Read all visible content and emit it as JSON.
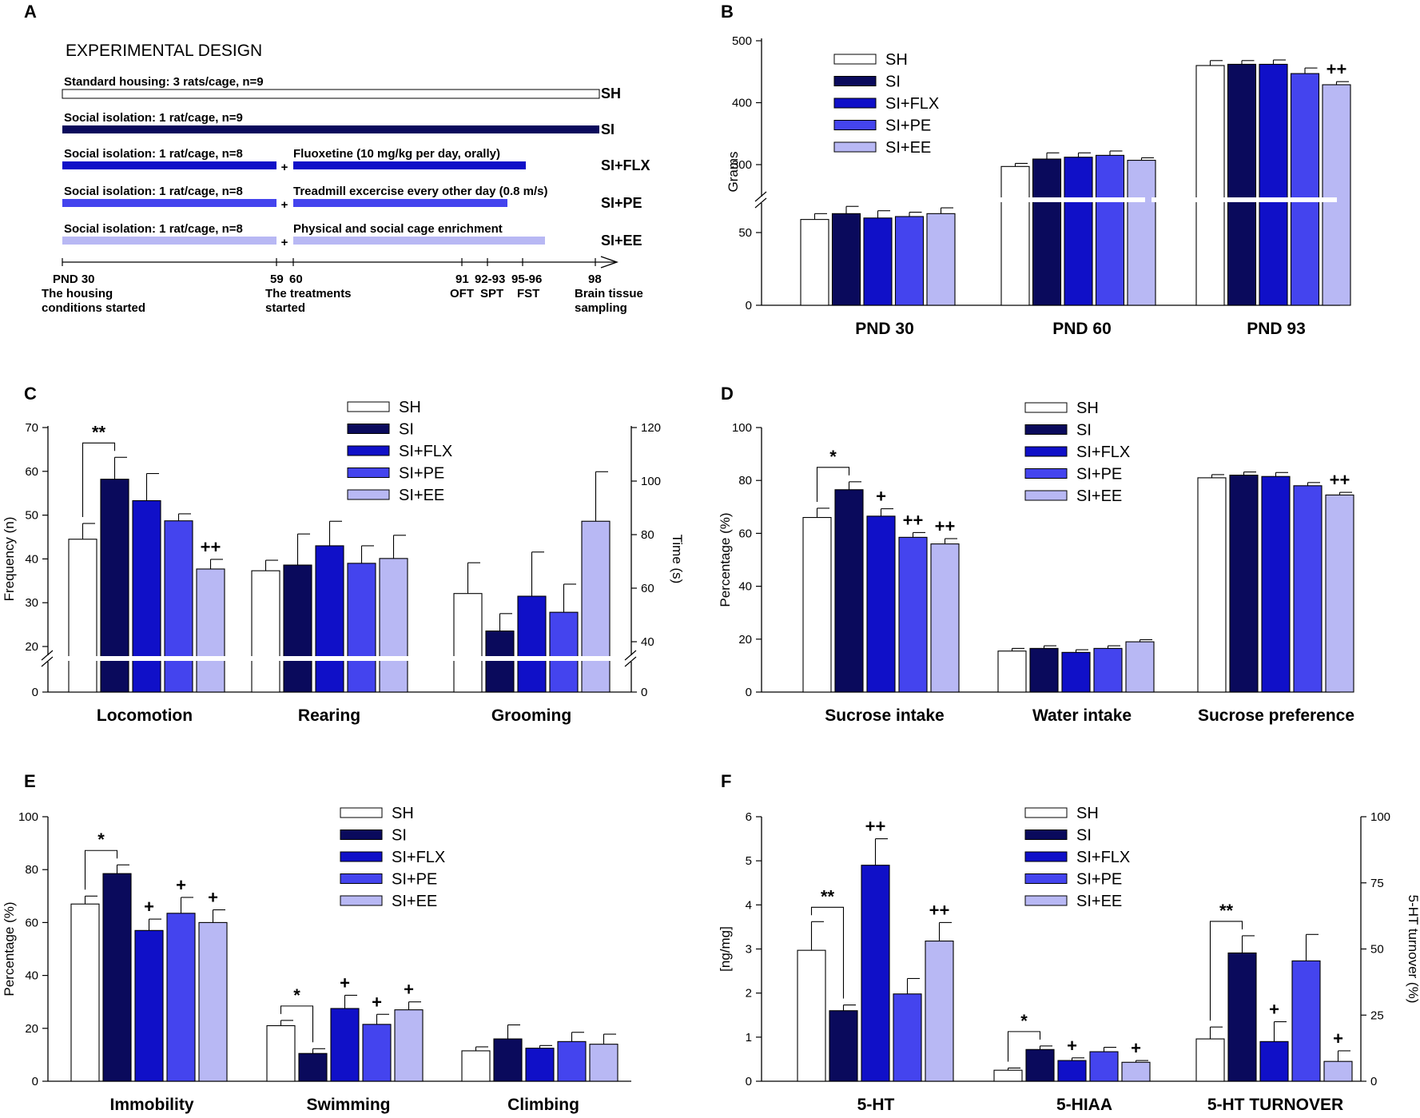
{
  "colors": {
    "SH": "#ffffff",
    "SI": "#0a0a5c",
    "SI+FLX": "#1010c8",
    "SI+PE": "#4444ee",
    "SI+EE": "#b8b8f4"
  },
  "groups": [
    "SH",
    "SI",
    "SI+FLX",
    "SI+PE",
    "SI+EE"
  ],
  "panel_letters": [
    "A",
    "B",
    "C",
    "D",
    "E",
    "F"
  ],
  "design": {
    "title": "EXPERIMENTAL DESIGN",
    "rows": [
      {
        "id": "SH",
        "label": "Standard housing: 3 rats/cage, n=9",
        "tag": "SH",
        "color_key": "SH",
        "treatment": null
      },
      {
        "id": "SI",
        "label": "Social isolation: 1 rat/cage, n=9",
        "tag": "SI",
        "color_key": "SI",
        "treatment": null
      },
      {
        "id": "SI+FLX",
        "label": "Social isolation: 1 rat/cage, n=8",
        "tag": "SI+FLX",
        "color_key": "SI+FLX",
        "treatment": "Fluoxetine (10 mg/kg per day, orally)"
      },
      {
        "id": "SI+PE",
        "label": "Social isolation: 1 rat/cage, n=8",
        "tag": "SI+PE",
        "color_key": "SI+PE",
        "treatment": "Treadmill excercise every other day (0.8 m/s)"
      },
      {
        "id": "SI+EE",
        "label": "Social isolation: 1 rat/cage, n=8",
        "tag": "SI+EE",
        "color_key": "SI+EE",
        "treatment": "Physical and social cage enrichment"
      }
    ],
    "plus": "+",
    "timeline": [
      {
        "day": "PND 30",
        "line2": "The housing",
        "line3": "conditions started"
      },
      {
        "day": "59",
        "line2": "The treatments",
        "line3": "started"
      },
      {
        "day": "60",
        "line2": "",
        "line3": ""
      },
      {
        "day": "91",
        "line2": "OFT",
        "line3": ""
      },
      {
        "day": "92-93",
        "line2": "SPT",
        "line3": ""
      },
      {
        "day": "95-96",
        "line2": "FST",
        "line3": ""
      },
      {
        "day": "98",
        "line2": "Brain tissue",
        "line3": "sampling"
      }
    ]
  },
  "chart_data": [
    {
      "panel": "B",
      "type": "bar",
      "ylabel": "Grams",
      "categories": [
        "PND 30",
        "PND 60",
        "PND 93"
      ],
      "yticks": [
        "0",
        "50",
        "300",
        "400",
        "500"
      ],
      "axis_break": {
        "below": 50,
        "above": 300
      },
      "series": [
        {
          "name": "SH",
          "values": [
            59,
            297,
            460
          ],
          "errors": [
            4,
            5,
            8
          ]
        },
        {
          "name": "SI",
          "values": [
            63,
            309,
            462
          ],
          "errors": [
            5,
            10,
            6
          ]
        },
        {
          "name": "SI+FLX",
          "values": [
            60,
            312,
            462
          ],
          "errors": [
            5,
            7,
            7
          ]
        },
        {
          "name": "SI+PE",
          "values": [
            61,
            315,
            447
          ],
          "errors": [
            3,
            7,
            9
          ]
        },
        {
          "name": "SI+EE",
          "values": [
            63,
            307,
            429
          ],
          "errors": [
            4,
            4,
            5
          ]
        }
      ],
      "annotations": [
        {
          "text": "++",
          "category": "PND 93",
          "series": "SI+EE"
        }
      ]
    },
    {
      "panel": "C",
      "type": "bar",
      "ylabel": "Frequency (n)",
      "y2label": "Time (s)",
      "categories": [
        "Locomotion",
        "Rearing",
        "Grooming"
      ],
      "yticks": [
        "0",
        "20",
        "30",
        "40",
        "50",
        "60",
        "70"
      ],
      "y2ticks": [
        "0",
        "40",
        "60",
        "80",
        "100",
        "120"
      ],
      "note": "Grooming is plotted on the right axis (Time, s)",
      "series": [
        {
          "name": "SH",
          "values": [
            44.5,
            37.3,
            58
          ],
          "errors": [
            3.6,
            2.4,
            11.5
          ]
        },
        {
          "name": "SI",
          "values": [
            58.2,
            38.6,
            44
          ],
          "errors": [
            5.0,
            7.1,
            6.5
          ]
        },
        {
          "name": "SI+FLX",
          "values": [
            53.3,
            43.0,
            57
          ],
          "errors": [
            6.2,
            5.6,
            16.5
          ]
        },
        {
          "name": "SI+PE",
          "values": [
            48.7,
            39.0,
            51
          ],
          "errors": [
            1.6,
            4.0,
            10.5
          ]
        },
        {
          "name": "SI+EE",
          "values": [
            37.7,
            40.1,
            85
          ],
          "errors": [
            2.2,
            5.3,
            18.5
          ]
        }
      ],
      "annotations": [
        {
          "text": "**",
          "bracket": [
            "SH",
            "SI"
          ],
          "category": "Locomotion"
        },
        {
          "text": "++",
          "category": "Locomotion",
          "series": "SI+EE"
        }
      ]
    },
    {
      "panel": "D",
      "type": "bar",
      "ylabel": "Percentage (%)",
      "categories": [
        "Sucrose intake",
        "Water intake",
        "Sucrose preference"
      ],
      "yticks": [
        "0",
        "20",
        "40",
        "60",
        "80",
        "100"
      ],
      "series": [
        {
          "name": "SH",
          "values": [
            66,
            15.5,
            81
          ],
          "errors": [
            3.5,
            1,
            1.2
          ]
        },
        {
          "name": "SI",
          "values": [
            76.5,
            16.5,
            82
          ],
          "errors": [
            3,
            1,
            1.2
          ]
        },
        {
          "name": "SI+FLX",
          "values": [
            66.5,
            15,
            81.5
          ],
          "errors": [
            2.8,
            1,
            1.5
          ]
        },
        {
          "name": "SI+PE",
          "values": [
            58.5,
            16.5,
            78
          ],
          "errors": [
            1.8,
            1,
            1.2
          ]
        },
        {
          "name": "SI+EE",
          "values": [
            56,
            19,
            74.5
          ],
          "errors": [
            2,
            0.8,
            1
          ]
        }
      ],
      "annotations": [
        {
          "text": "*",
          "bracket": [
            "SH",
            "SI"
          ],
          "category": "Sucrose intake"
        },
        {
          "text": "+",
          "category": "Sucrose intake",
          "series": "SI+FLX"
        },
        {
          "text": "++",
          "category": "Sucrose intake",
          "series": "SI+PE"
        },
        {
          "text": "++",
          "category": "Sucrose intake",
          "series": "SI+EE"
        },
        {
          "text": "++",
          "category": "Sucrose preference",
          "series": "SI+EE"
        }
      ]
    },
    {
      "panel": "E",
      "type": "bar",
      "ylabel": "Percentage (%)",
      "categories": [
        "Immobility",
        "Swimming",
        "Climbing"
      ],
      "yticks": [
        "0",
        "20",
        "40",
        "60",
        "80",
        "100"
      ],
      "series": [
        {
          "name": "SH",
          "values": [
            67,
            21,
            11.5
          ],
          "errors": [
            3,
            2,
            1.5
          ]
        },
        {
          "name": "SI",
          "values": [
            78.5,
            10.5,
            16
          ],
          "errors": [
            3.3,
            1.8,
            5.3
          ]
        },
        {
          "name": "SI+FLX",
          "values": [
            57,
            27.5,
            12.5
          ],
          "errors": [
            4.3,
            5,
            1
          ]
        },
        {
          "name": "SI+PE",
          "values": [
            63.5,
            21.5,
            15
          ],
          "errors": [
            6,
            3.8,
            3.5
          ]
        },
        {
          "name": "SI+EE",
          "values": [
            60,
            27,
            14
          ],
          "errors": [
            4.8,
            3,
            3.8
          ]
        }
      ],
      "annotations": [
        {
          "text": "*",
          "bracket": [
            "SH",
            "SI"
          ],
          "category": "Immobility"
        },
        {
          "text": "+",
          "category": "Immobility",
          "series": "SI+FLX"
        },
        {
          "text": "+",
          "category": "Immobility",
          "series": "SI+PE"
        },
        {
          "text": "+",
          "category": "Immobility",
          "series": "SI+EE"
        },
        {
          "text": "*",
          "bracket": [
            "SH",
            "SI"
          ],
          "category": "Swimming"
        },
        {
          "text": "+",
          "category": "Swimming",
          "series": "SI+FLX"
        },
        {
          "text": "+",
          "category": "Swimming",
          "series": "SI+PE"
        },
        {
          "text": "+",
          "category": "Swimming",
          "series": "SI+EE"
        }
      ]
    },
    {
      "panel": "F",
      "type": "bar",
      "ylabel": "[ng/mg]",
      "y2label": "5-HT turnover (%)",
      "categories": [
        "5-HT",
        "5-HIAA",
        "5-HT TURNOVER"
      ],
      "yticks": [
        "0",
        "1",
        "2",
        "3",
        "4",
        "5",
        "6"
      ],
      "y2ticks": [
        "0",
        "25",
        "50",
        "75",
        "100"
      ],
      "note": "5-HT TURNOVER is plotted on the right axis (%)",
      "series": [
        {
          "name": "SH",
          "values": [
            2.97,
            0.25,
            16
          ],
          "errors": [
            0.65,
            0.05,
            4.5
          ]
        },
        {
          "name": "SI",
          "values": [
            1.6,
            0.72,
            48.5
          ],
          "errors": [
            0.13,
            0.08,
            6.5
          ]
        },
        {
          "name": "SI+FLX",
          "values": [
            4.9,
            0.47,
            15
          ],
          "errors": [
            0.6,
            0.06,
            7.5
          ]
        },
        {
          "name": "SI+PE",
          "values": [
            1.98,
            0.67,
            45.5
          ],
          "errors": [
            0.35,
            0.1,
            10
          ]
        },
        {
          "name": "SI+EE",
          "values": [
            3.18,
            0.43,
            7.5
          ],
          "errors": [
            0.42,
            0.04,
            4
          ]
        }
      ],
      "annotations": [
        {
          "text": "**",
          "bracket": [
            "SH",
            "SI"
          ],
          "category": "5-HT"
        },
        {
          "text": "++",
          "category": "5-HT",
          "series": "SI+FLX"
        },
        {
          "text": "++",
          "category": "5-HT",
          "series": "SI+EE"
        },
        {
          "text": "*",
          "bracket": [
            "SH",
            "SI"
          ],
          "category": "5-HIAA"
        },
        {
          "text": "+",
          "category": "5-HIAA",
          "series": "SI+FLX"
        },
        {
          "text": "+",
          "category": "5-HIAA",
          "series": "SI+EE"
        },
        {
          "text": "**",
          "bracket": [
            "SH",
            "SI"
          ],
          "category": "5-HT TURNOVER"
        },
        {
          "text": "+",
          "category": "5-HT TURNOVER",
          "series": "SI+FLX"
        },
        {
          "text": "+",
          "category": "5-HT TURNOVER",
          "series": "SI+EE"
        }
      ]
    }
  ]
}
